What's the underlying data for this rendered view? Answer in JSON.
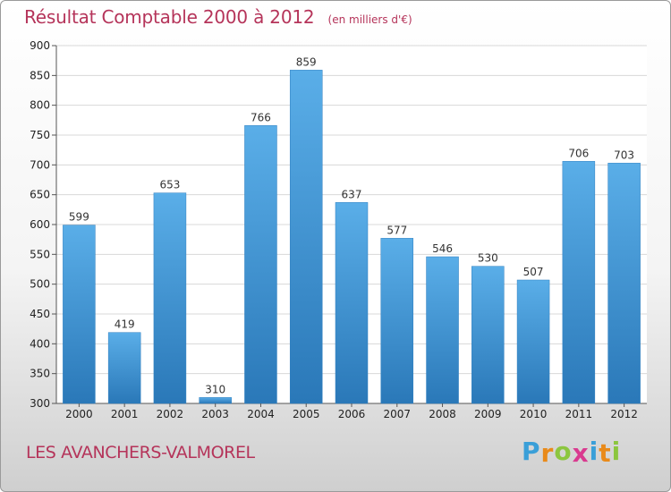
{
  "chart_data": {
    "type": "bar",
    "title": "Résultat Comptable 2000 à 2012",
    "unit": "(en milliers d'€)",
    "categories": [
      "2000",
      "2001",
      "2002",
      "2003",
      "2004",
      "2005",
      "2006",
      "2007",
      "2008",
      "2009",
      "2010",
      "2011",
      "2012"
    ],
    "values": [
      599,
      419,
      653,
      310,
      766,
      859,
      637,
      577,
      546,
      530,
      507,
      706,
      703
    ],
    "ylim": [
      300,
      900
    ],
    "yticks": [
      300,
      350,
      400,
      450,
      500,
      550,
      600,
      650,
      700,
      750,
      800,
      850,
      900
    ],
    "grid": true,
    "bar_color_top": "#5aaee8",
    "bar_color_bottom": "#2a78b8"
  },
  "place": "LES AVANCHERS-VALMOREL",
  "logo": {
    "letters": [
      "P",
      "r",
      "o",
      "x",
      "i",
      "t",
      "i"
    ],
    "colors": [
      "#3a9fd8",
      "#e98a1a",
      "#8cc63f",
      "#d93a8f",
      "#3a9fd8",
      "#e98a1a",
      "#8cc63f"
    ]
  }
}
